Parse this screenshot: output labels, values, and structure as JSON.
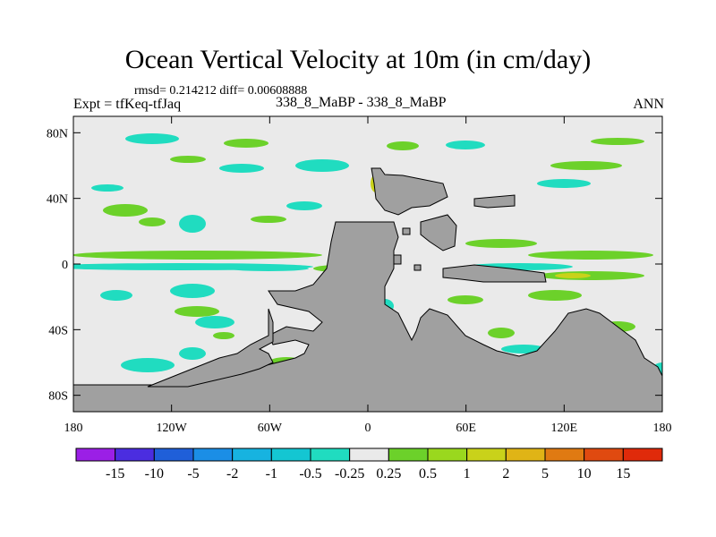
{
  "header": {
    "title": "Ocean Vertical Velocity at 10m (in cm/day)",
    "stats": "rmsd= 0.214212 diff= 0.00608888",
    "left": "Expt = tfKeq-tfJaq",
    "center": "338_8_MaBP - 338_8_MaBP",
    "right": "ANN"
  },
  "chart_data": {
    "type": "heatmap",
    "title": "Ocean Vertical Velocity at 10m (in cm/day)",
    "x_ticks": [
      "180",
      "120W",
      "60W",
      "0",
      "60E",
      "120E",
      "180"
    ],
    "y_ticks": [
      "80N",
      "40N",
      "0",
      "40S",
      "80S"
    ],
    "xlim": [
      -180,
      180
    ],
    "ylim": [
      -90,
      90
    ],
    "x_tick_values": [
      -180,
      -120,
      -60,
      0,
      60,
      120,
      180
    ],
    "y_tick_values": [
      80,
      40,
      0,
      -40,
      -80
    ],
    "colorbar_labels": [
      "-15",
      "-10",
      "-5",
      "-2",
      "-1",
      "-0.5",
      "-0.25",
      "0.25",
      "0.5",
      "1",
      "2",
      "5",
      "10",
      "15"
    ],
    "colorbar_colors": [
      "#9b1fe6",
      "#4b2de0",
      "#1f5fd9",
      "#1b8ee6",
      "#17b3e0",
      "#14c6d2",
      "#20dcc0",
      "#eaeaea",
      "#6cd12a",
      "#9ad81e",
      "#c9d21a",
      "#e0b416",
      "#e07a12",
      "#e04a10",
      "#e02a0a"
    ],
    "land_color": "#a0a0a0",
    "background_color": "#eaeaea"
  }
}
